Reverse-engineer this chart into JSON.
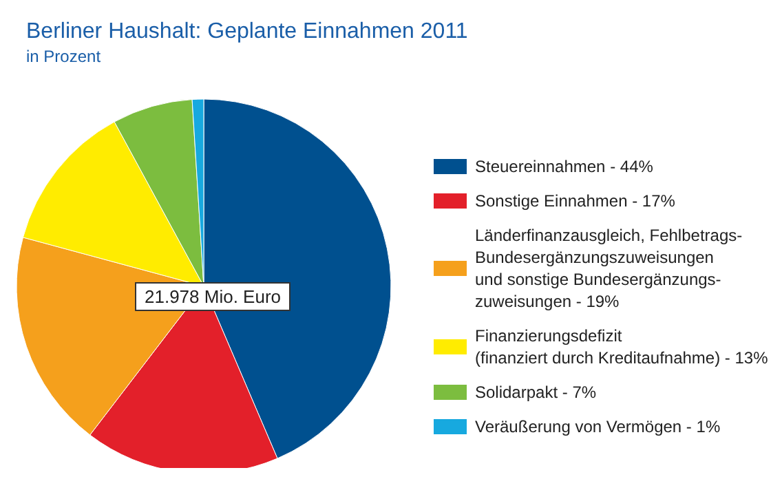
{
  "chart_data": {
    "type": "pie",
    "title": "Berliner Haushalt: Geplante Einnahmen 2011",
    "subtitle": "in Prozent",
    "categories": [
      "Steuereinnahmen - 44%",
      "Sonstige Einnahmen - 17%",
      "Länderfinanzausgleich, Fehlbetrags-\nBundesergänzungszuweisungen\nund sonstige Bundesergänzungs-\nzuweisungen - 19%",
      "Finanzierungsdefizit\n(finanziert durch Kreditaufnahme) - 13%",
      "Solidarpakt - 7%",
      "Veräußerung von Vermögen - 1%"
    ],
    "values": [
      44,
      17,
      19,
      13,
      7,
      1
    ],
    "colors": [
      "#00508f",
      "#e3202a",
      "#f5a01c",
      "#ffec00",
      "#7cbd3f",
      "#17a9df"
    ],
    "annotations": [
      "21.978 Mio. Euro"
    ],
    "legend": "right"
  }
}
